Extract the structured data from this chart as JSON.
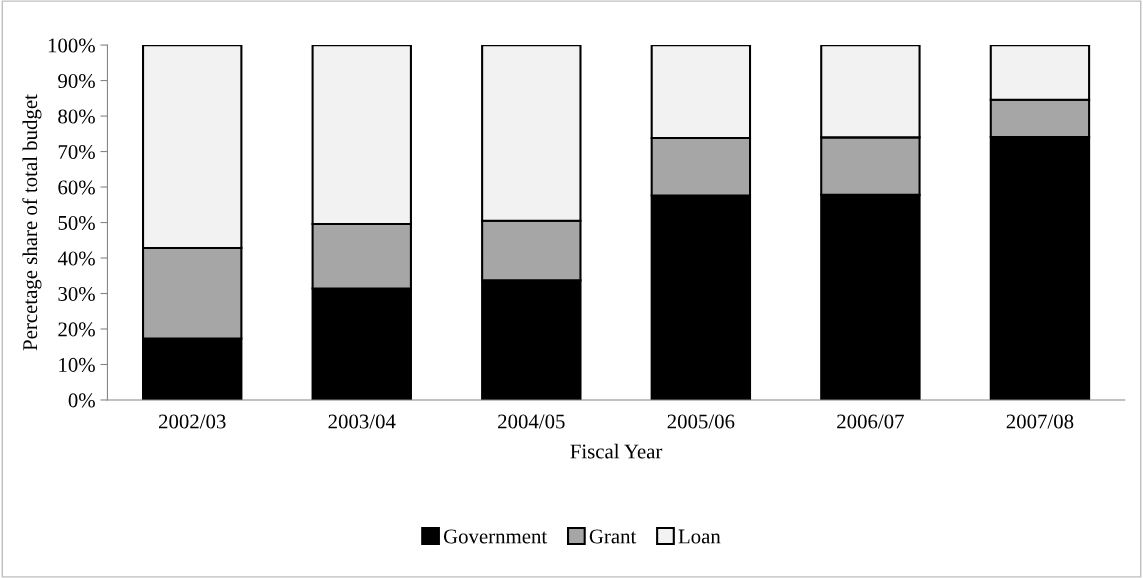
{
  "chart_data": {
    "type": "bar",
    "stacked": true,
    "xlabel": "Fiscal Year",
    "ylabel": "Percetage share of total budget",
    "categories": [
      "2002/03",
      "2003/04",
      "2004/05",
      "2005/06",
      "2006/07",
      "2007/08"
    ],
    "series": [
      {
        "name": "Government",
        "color": "#000000",
        "values": [
          17.3,
          31.4,
          33.7,
          57.6,
          57.8,
          74.1
        ]
      },
      {
        "name": "Grant",
        "color": "#a6a6a6",
        "values": [
          25.5,
          18.2,
          16.8,
          16.2,
          16.2,
          10.5
        ]
      },
      {
        "name": "Loan",
        "color": "#f2f2f2",
        "values": [
          57.2,
          50.4,
          49.5,
          26.2,
          26.0,
          15.4
        ]
      }
    ],
    "ylim": [
      0,
      100
    ],
    "yticks": [
      {
        "value": 0,
        "label": "0%"
      },
      {
        "value": 10,
        "label": "10%"
      },
      {
        "value": 20,
        "label": "20%"
      },
      {
        "value": 30,
        "label": "30%"
      },
      {
        "value": 40,
        "label": "40%"
      },
      {
        "value": 50,
        "label": "50%"
      },
      {
        "value": 60,
        "label": "60%"
      },
      {
        "value": 70,
        "label": "70%"
      },
      {
        "value": 80,
        "label": "80%"
      },
      {
        "value": 90,
        "label": "90%"
      },
      {
        "value": 100,
        "label": "100%"
      }
    ],
    "grid": false,
    "legend": "bottom"
  }
}
